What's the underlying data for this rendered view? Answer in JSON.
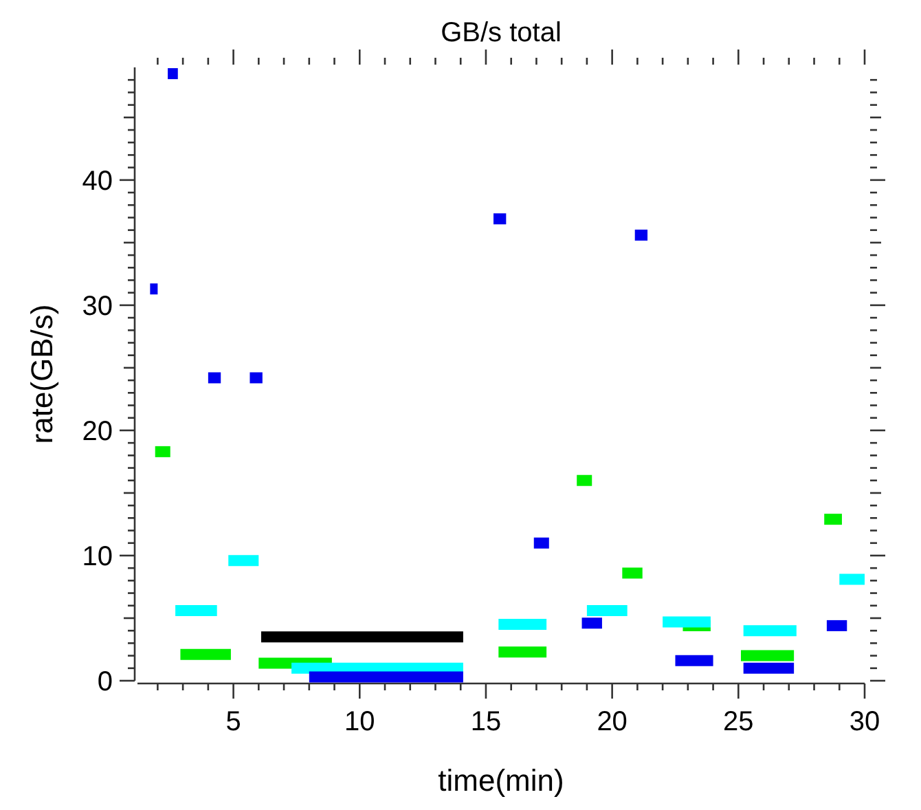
{
  "chart_data": {
    "type": "line",
    "title": "GB/s total",
    "xlabel": "time(min)",
    "ylabel": "rate(GB/s)",
    "xlim": [
      1.2,
      30
    ],
    "ylim": [
      0,
      49
    ],
    "xticks": [
      {
        "value": 2,
        "label": null
      },
      {
        "value": 3,
        "label": null
      },
      {
        "value": 4,
        "label": null
      },
      5,
      {
        "value": 6,
        "label": null
      },
      {
        "value": 7,
        "label": null
      },
      {
        "value": 8,
        "label": null
      },
      {
        "value": 9,
        "label": null
      },
      10,
      {
        "value": 11,
        "label": null
      },
      {
        "value": 12,
        "label": null
      },
      {
        "value": 13,
        "label": null
      },
      {
        "value": 14,
        "label": null
      },
      15,
      {
        "value": 16,
        "label": null
      },
      {
        "value": 17,
        "label": null
      },
      {
        "value": 18,
        "label": null
      },
      {
        "value": 19,
        "label": null
      },
      20,
      {
        "value": 21,
        "label": null
      },
      {
        "value": 22,
        "label": null
      },
      {
        "value": 23,
        "label": null
      },
      {
        "value": 24,
        "label": null
      },
      25,
      {
        "value": 26,
        "label": null
      },
      {
        "value": 27,
        "label": null
      },
      {
        "value": 28,
        "label": null
      },
      {
        "value": 29,
        "label": null
      },
      30
    ],
    "yticks": [
      0,
      {
        "value": 1,
        "label": null
      },
      {
        "value": 2,
        "label": null
      },
      {
        "value": 3,
        "label": null
      },
      {
        "value": 4,
        "label": null
      },
      {
        "value": 5,
        "label": null
      },
      {
        "value": 6,
        "label": null
      },
      {
        "value": 7,
        "label": null
      },
      {
        "value": 8,
        "label": null
      },
      {
        "value": 9,
        "label": null
      },
      10,
      {
        "value": 11,
        "label": null
      },
      {
        "value": 12,
        "label": null
      },
      {
        "value": 13,
        "label": null
      },
      {
        "value": 14,
        "label": null
      },
      {
        "value": 15,
        "label": null
      },
      {
        "value": 16,
        "label": null
      },
      {
        "value": 17,
        "label": null
      },
      {
        "value": 18,
        "label": null
      },
      {
        "value": 19,
        "label": null
      },
      20,
      {
        "value": 21,
        "label": null
      },
      {
        "value": 22,
        "label": null
      },
      {
        "value": 23,
        "label": null
      },
      {
        "value": 24,
        "label": null
      },
      {
        "value": 25,
        "label": null
      },
      {
        "value": 26,
        "label": null
      },
      {
        "value": 27,
        "label": null
      },
      {
        "value": 28,
        "label": null
      },
      {
        "value": 29,
        "label": null
      },
      30,
      {
        "value": 31,
        "label": null
      },
      {
        "value": 32,
        "label": null
      },
      {
        "value": 33,
        "label": null
      },
      {
        "value": 34,
        "label": null
      },
      {
        "value": 35,
        "label": null
      },
      {
        "value": 36,
        "label": null
      },
      {
        "value": 37,
        "label": null
      },
      {
        "value": 38,
        "label": null
      },
      {
        "value": 39,
        "label": null
      },
      40,
      {
        "value": 41,
        "label": null
      },
      {
        "value": 42,
        "label": null
      },
      {
        "value": 43,
        "label": null
      },
      {
        "value": 44,
        "label": null
      },
      {
        "value": 45,
        "label": null
      },
      {
        "value": 46,
        "label": null
      },
      {
        "value": 47,
        "label": null
      },
      {
        "value": 48,
        "label": null
      }
    ],
    "grid": false,
    "marker": "none",
    "line_style": "solid",
    "series": [
      {
        "color": "#000000",
        "x": [
          6.1,
          14.1
        ],
        "values": [
          3.5,
          3.5
        ]
      },
      {
        "color": "#00ee00",
        "x": [
          1.9,
          2.5
        ],
        "values": [
          18.3,
          18.3
        ]
      },
      {
        "color": "#00ee00",
        "x": [
          2.9,
          4.9
        ],
        "values": [
          2.1,
          2.1
        ]
      },
      {
        "color": "#00ee00",
        "x": [
          6.0,
          8.9
        ],
        "values": [
          1.4,
          1.4
        ]
      },
      {
        "color": "#00ee00",
        "x": [
          15.5,
          17.4
        ],
        "values": [
          2.3,
          2.3
        ]
      },
      {
        "color": "#00ee00",
        "x": [
          18.6,
          19.2
        ],
        "values": [
          16.0,
          16.0
        ]
      },
      {
        "color": "#00ee00",
        "x": [
          20.4,
          21.2
        ],
        "values": [
          8.6,
          8.6
        ]
      },
      {
        "color": "#00ee00",
        "x": [
          22.8,
          23.9
        ],
        "values": [
          4.4,
          4.4
        ]
      },
      {
        "color": "#00ee00",
        "x": [
          25.1,
          27.2
        ],
        "values": [
          2.0,
          2.0
        ]
      },
      {
        "color": "#00ee00",
        "x": [
          28.4,
          29.1
        ],
        "values": [
          12.9,
          12.9
        ]
      },
      {
        "color": "#00ffff",
        "x": [
          2.7,
          4.35
        ],
        "values": [
          5.6,
          5.6
        ]
      },
      {
        "color": "#00ffff",
        "x": [
          4.8,
          6.0
        ],
        "values": [
          9.6,
          9.6
        ]
      },
      {
        "color": "#00ffff",
        "x": [
          7.3,
          14.1
        ],
        "values": [
          1.0,
          1.0
        ]
      },
      {
        "color": "#00ffff",
        "x": [
          15.5,
          17.4
        ],
        "values": [
          4.5,
          4.5
        ]
      },
      {
        "color": "#00ffff",
        "x": [
          19.0,
          20.6
        ],
        "values": [
          5.6,
          5.6
        ]
      },
      {
        "color": "#00ffff",
        "x": [
          22.0,
          23.9
        ],
        "values": [
          4.7,
          4.7
        ]
      },
      {
        "color": "#00ffff",
        "x": [
          25.2,
          27.3
        ],
        "values": [
          4.0,
          4.0
        ]
      },
      {
        "color": "#00ffff",
        "x": [
          29.0,
          30.0
        ],
        "values": [
          8.1,
          8.1
        ]
      },
      {
        "color": "#0000f0",
        "x": [
          1.7,
          2.0
        ],
        "values": [
          31.3,
          31.3
        ]
      },
      {
        "color": "#0000f0",
        "x": [
          2.4,
          2.8
        ],
        "values": [
          48.5,
          48.5
        ]
      },
      {
        "color": "#0000f0",
        "x": [
          4.0,
          4.5
        ],
        "values": [
          24.2,
          24.2
        ]
      },
      {
        "color": "#0000f0",
        "x": [
          5.65,
          6.15
        ],
        "values": [
          24.2,
          24.2
        ]
      },
      {
        "color": "#0000f0",
        "x": [
          8.0,
          14.1
        ],
        "values": [
          0.3,
          0.3
        ]
      },
      {
        "color": "#0000f0",
        "x": [
          15.3,
          15.8
        ],
        "values": [
          36.9,
          36.9
        ]
      },
      {
        "color": "#0000f0",
        "x": [
          16.9,
          17.5
        ],
        "values": [
          11.0,
          11.0
        ]
      },
      {
        "color": "#0000f0",
        "x": [
          18.8,
          19.6
        ],
        "values": [
          4.6,
          4.6
        ]
      },
      {
        "color": "#0000f0",
        "x": [
          20.9,
          21.4
        ],
        "values": [
          35.6,
          35.6
        ]
      },
      {
        "color": "#0000f0",
        "x": [
          22.5,
          24.0
        ],
        "values": [
          1.6,
          1.6
        ]
      },
      {
        "color": "#0000f0",
        "x": [
          25.2,
          27.2
        ],
        "values": [
          1.0,
          1.0
        ]
      },
      {
        "color": "#0000f0",
        "x": [
          28.5,
          29.3
        ],
        "values": [
          4.4,
          4.4
        ]
      }
    ]
  }
}
